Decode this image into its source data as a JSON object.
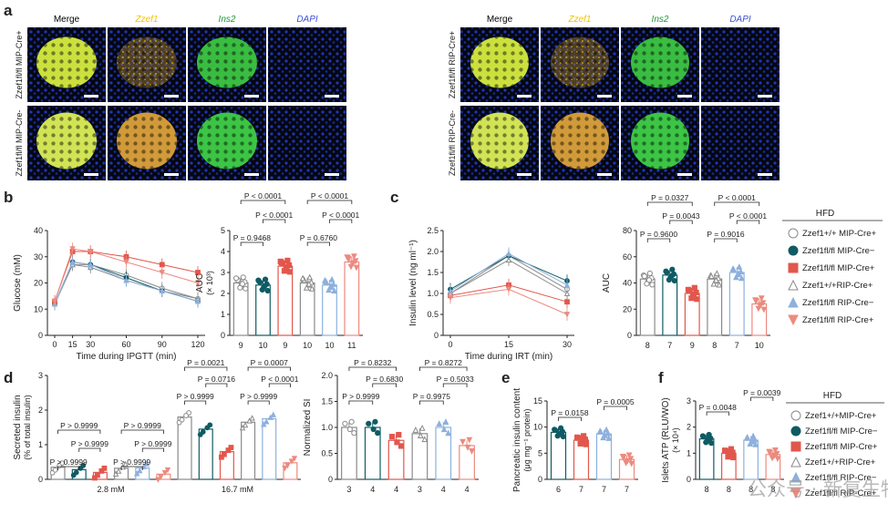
{
  "panel_letters": [
    "a",
    "b",
    "c",
    "d",
    "e",
    "f"
  ],
  "colors": {
    "yellow": "#f2c300",
    "green": "#1f9a3a",
    "blue": "#3b4fd6",
    "teal": "#0f5b63",
    "red": "#e2574c",
    "lightblue": "#8db0dd",
    "salmon": "#ec8a7f",
    "grey": "#9a9a9a"
  },
  "panel_a": {
    "channels": [
      "Merge",
      "Zzef1",
      "Ins2",
      "DAPI"
    ],
    "row_labels_left": [
      "Zzef1fl/fl MIP-Cre+",
      "Zzef1fl/fl MIP-Cre-"
    ],
    "row_labels_right": [
      "Zzef1fl/fl RIP-Cre+",
      "Zzef1fl/fl RIP-Cre-"
    ]
  },
  "legend_hfd": {
    "title": "HFD",
    "items": [
      "Zzef1+/+ MIP-Cre+",
      "Zzef1fl/fl MIP-Cre−",
      "Zzef1fl/fl MIP-Cre+",
      "Zzef1+/+RIP-Cre+",
      "Zzef1fl/fl RIP-Cre−",
      "Zzef1fl/fl RIP-Cre+"
    ]
  },
  "legend_f": {
    "title": "HFD",
    "items": [
      "Zzef1+/+MIP-Cre+",
      "Zzef1fl/fl MIP-Cre−",
      "Zzef1fl/fl MIP-Cre+",
      "Zzef1+/+RIP-Cre+",
      "Zzef1fl/fl RIP-Cre−",
      "Zzef1fl/fl RIP-Cre+"
    ]
  },
  "watermark": "公众号 · 新复生物",
  "chart_data": [
    {
      "id": "b-ipgtt",
      "type": "line",
      "xlabel": "Time during IPGTT (min)",
      "ylabel": "Glucose (mM)",
      "x": [
        0,
        15,
        30,
        60,
        90,
        120
      ],
      "xticks": [
        "0",
        "15",
        "30",
        "60",
        "90",
        "120"
      ],
      "ylim": [
        0,
        40
      ],
      "yticks": [
        "0",
        "10",
        "20",
        "30",
        "40"
      ],
      "series": [
        {
          "name": "Zzef1+/+ MIP-Cre+",
          "values": [
            12,
            27,
            27,
            23,
            18,
            14
          ]
        },
        {
          "name": "Zzef1fl/fl MIP-Cre−",
          "values": [
            12,
            28,
            27,
            22,
            17,
            13
          ]
        },
        {
          "name": "Zzef1fl/fl MIP-Cre+",
          "values": [
            13,
            32,
            32,
            30,
            27,
            24
          ]
        },
        {
          "name": "Zzef1+/+RIP-Cre+",
          "values": [
            12,
            27,
            26,
            21,
            17,
            14
          ]
        },
        {
          "name": "Zzef1fl/fl RIP-Cre−",
          "values": [
            12,
            28,
            27,
            21,
            17,
            13
          ]
        },
        {
          "name": "Zzef1fl/fl RIP-Cre+",
          "values": [
            13,
            33,
            32,
            28,
            24,
            20
          ]
        }
      ]
    },
    {
      "id": "b-auc",
      "type": "bar",
      "ylabel": "AUC",
      "ylabel2": "(× 10³)",
      "ylim": [
        0,
        5
      ],
      "yticks": [
        "0",
        "1",
        "2",
        "3",
        "4",
        "5"
      ],
      "categories": [
        "9",
        "10",
        "9",
        "10",
        "10",
        "11"
      ],
      "values": [
        2.5,
        2.4,
        3.3,
        2.5,
        2.4,
        3.5
      ],
      "pvalues": [
        "P = 0.9468",
        "P = 0.6760",
        "P < 0.0001",
        "P < 0.0001",
        "P < 0.0001",
        "P < 0.0001"
      ]
    },
    {
      "id": "c-irt",
      "type": "line",
      "xlabel": "Time during IRT (min)",
      "ylabel": "Insulin level (ng ml⁻¹)",
      "x": [
        0,
        15,
        30
      ],
      "xticks": [
        "0",
        "15",
        "30"
      ],
      "ylim": [
        0,
        2.5
      ],
      "yticks": [
        "0",
        "0.5",
        "1.0",
        "1.5",
        "2.0",
        "2.5"
      ],
      "series": [
        {
          "name": "Zzef1+/+ MIP-Cre+",
          "values": [
            1.0,
            1.9,
            1.1
          ]
        },
        {
          "name": "Zzef1fl/fl MIP-Cre−",
          "values": [
            1.1,
            1.9,
            1.3
          ]
        },
        {
          "name": "Zzef1fl/fl MIP-Cre+",
          "values": [
            0.95,
            1.2,
            0.8
          ]
        },
        {
          "name": "Zzef1+/+RIP-Cre+",
          "values": [
            1.0,
            1.8,
            1.0
          ]
        },
        {
          "name": "Zzef1fl/fl RIP-Cre−",
          "values": [
            1.05,
            1.95,
            1.2
          ]
        },
        {
          "name": "Zzef1fl/fl RIP-Cre+",
          "values": [
            0.9,
            1.1,
            0.5
          ]
        }
      ]
    },
    {
      "id": "c-auc",
      "type": "bar",
      "ylabel": "AUC",
      "ylim": [
        0,
        80
      ],
      "yticks": [
        "0",
        "20",
        "40",
        "60",
        "80"
      ],
      "categories": [
        "8",
        "7",
        "9",
        "8",
        "7",
        "10"
      ],
      "values": [
        43,
        46,
        32,
        43,
        48,
        24
      ],
      "pvalues": [
        "P = 0.9600",
        "P = 0.9016",
        "P = 0.0327",
        "P = 0.0043",
        "P < 0.0001",
        "P < 0.0001"
      ]
    },
    {
      "id": "d-secreted",
      "type": "bar",
      "ylabel": "Secreted insulin",
      "ylabel2": "(% of total insulin)",
      "ylim": [
        0,
        3
      ],
      "yticks": [
        "0",
        "1",
        "2",
        "3"
      ],
      "groups": [
        "2.8 mM",
        "16.7 mM"
      ],
      "values_low": [
        0.35,
        0.28,
        0.2,
        0.32,
        0.33,
        0.15
      ],
      "values_high": [
        1.8,
        1.45,
        0.8,
        1.65,
        1.75,
        0.48
      ],
      "pvalues_low": [
        "P > 0.9999",
        "P > 0.9999",
        "P > 0.9999",
        "P > 0.9999",
        "P > 0.9999",
        "P > 0.9999"
      ],
      "pvalues_high": [
        "P = 0.0021",
        "P = 0.0716",
        "P > 0.9999",
        "P = 0.0007",
        "P < 0.0001",
        "P > 0.9999"
      ]
    },
    {
      "id": "d-si",
      "type": "bar",
      "ylabel": "Normalized SI",
      "ylim": [
        0,
        2.0
      ],
      "yticks": [
        "0",
        "0.5",
        "1.0",
        "1.5",
        "2.0"
      ],
      "categories": [
        "3",
        "4",
        "4",
        "3",
        "4",
        "4"
      ],
      "values": [
        1.0,
        1.0,
        0.75,
        0.88,
        1.0,
        0.65
      ],
      "pvalues": [
        "P = 0.8232",
        "P = 0.8272",
        "P = 0.6830",
        "P = 0.5033",
        "P > 0.9999",
        "P = 0.9975"
      ]
    },
    {
      "id": "e-content",
      "type": "bar",
      "ylabel": "Pancreatic insulin content",
      "ylabel2": "(μg mg⁻¹ protein)",
      "ylim": [
        0,
        15
      ],
      "yticks": [
        "0",
        "5",
        "10",
        "15"
      ],
      "categories": [
        "6",
        "7",
        "7",
        "7"
      ],
      "values": [
        9.0,
        7.5,
        8.7,
        3.8
      ],
      "pvalues": [
        "P = 0.0158",
        "P = 0.0005"
      ]
    },
    {
      "id": "f-atp",
      "type": "bar",
      "ylabel": "Islets ATP (RLU/WO)",
      "ylabel2": "(× 10⁴)",
      "ylim": [
        0,
        3
      ],
      "yticks": [
        "0",
        "1",
        "2",
        "3"
      ],
      "categories": [
        "8",
        "8",
        "8",
        "8"
      ],
      "values": [
        1.55,
        1.0,
        1.5,
        0.95
      ],
      "pvalues": [
        "P = 0.0048",
        "P = 0.0039"
      ]
    }
  ]
}
